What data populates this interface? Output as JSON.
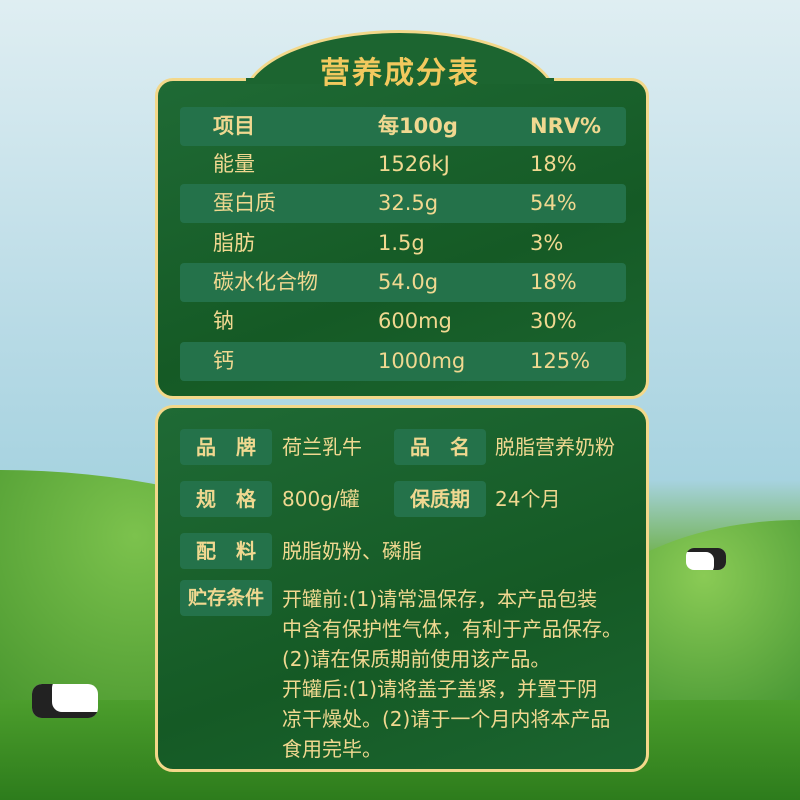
{
  "nutrition": {
    "title": "营养成分表",
    "headers": [
      "项目",
      "每100g",
      "NRV%"
    ],
    "rows": [
      [
        "能量",
        "1526kJ",
        "18%"
      ],
      [
        "蛋白质",
        "32.5g",
        "54%"
      ],
      [
        "脂肪",
        "1.5g",
        "3%"
      ],
      [
        "碳水化合物",
        "54.0g",
        "18%"
      ],
      [
        "钠",
        "600mg",
        "30%"
      ],
      [
        "钙",
        "1000mg",
        "125%"
      ]
    ]
  },
  "info": {
    "brand_label": "品　牌",
    "brand": "荷兰乳牛",
    "name_label": "品　名",
    "name": "脱脂营养奶粉",
    "spec_label": "规　格",
    "spec": "800g/罐",
    "shelf_label": "保质期",
    "shelf": "24个月",
    "ingredients_label": "配　料",
    "ingredients": "脱脂奶粉、磷脂",
    "storage_label": "贮存条件",
    "storage_lines": [
      "开罐前:(1)请常温保存，本产品包装",
      "中含有保护性气体，有利于产品保存。",
      "(2)请在保质期前使用该产品。",
      "开罐后:(1)请将盖子盖紧，并置于阴",
      "凉干燥处。(2)请于一个月内将本产品",
      "食用完毕。"
    ]
  },
  "colors": {
    "panel": "#1b6530",
    "border": "#f3d88a",
    "text": "#f0d890"
  }
}
